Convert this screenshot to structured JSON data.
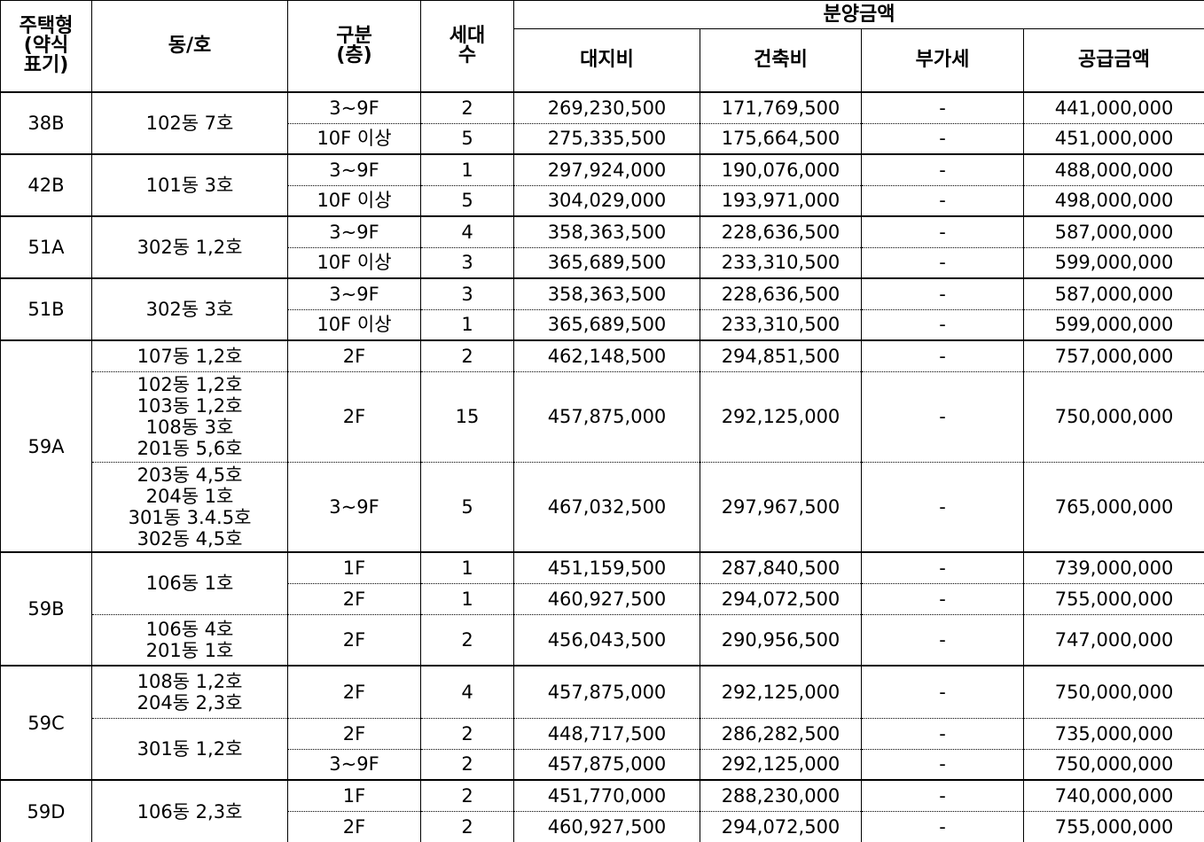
{
  "headers": {
    "type": [
      "주택형",
      "(약식",
      "표기)"
    ],
    "dong_ho": "동/호",
    "floor": [
      "구분",
      "(층)"
    ],
    "households": [
      "세대",
      "수"
    ],
    "price_group": "분양금액",
    "land": "대지비",
    "building": "건축비",
    "vat": "부가세",
    "total": "공급금액"
  },
  "rows": [
    {
      "type": "38B",
      "dong": [
        "102동  7호"
      ],
      "floor": "3~9F",
      "hh": "2",
      "land": "269,230,500",
      "building": "171,769,500",
      "vat": "-",
      "total": "441,000,000"
    },
    {
      "type": "",
      "dong": [],
      "floor": "10F  이상",
      "hh": "5",
      "land": "275,335,500",
      "building": "175,664,500",
      "vat": "-",
      "total": "451,000,000"
    },
    {
      "type": "42B",
      "dong": [
        "101동  3호"
      ],
      "floor": "3~9F",
      "hh": "1",
      "land": "297,924,000",
      "building": "190,076,000",
      "vat": "-",
      "total": "488,000,000"
    },
    {
      "type": "",
      "dong": [],
      "floor": "10F  이상",
      "hh": "5",
      "land": "304,029,000",
      "building": "193,971,000",
      "vat": "-",
      "total": "498,000,000"
    },
    {
      "type": "51A",
      "dong": [
        "302동  1,2호"
      ],
      "floor": "3~9F",
      "hh": "4",
      "land": "358,363,500",
      "building": "228,636,500",
      "vat": "-",
      "total": "587,000,000"
    },
    {
      "type": "",
      "dong": [],
      "floor": "10F  이상",
      "hh": "3",
      "land": "365,689,500",
      "building": "233,310,500",
      "vat": "-",
      "total": "599,000,000"
    },
    {
      "type": "51B",
      "dong": [
        "302동  3호"
      ],
      "floor": "3~9F",
      "hh": "3",
      "land": "358,363,500",
      "building": "228,636,500",
      "vat": "-",
      "total": "587,000,000"
    },
    {
      "type": "",
      "dong": [],
      "floor": "10F  이상",
      "hh": "1",
      "land": "365,689,500",
      "building": "233,310,500",
      "vat": "-",
      "total": "599,000,000"
    },
    {
      "type": "59A",
      "dong": [
        "107동  1,2호"
      ],
      "floor": "2F",
      "hh": "2",
      "land": "462,148,500",
      "building": "294,851,500",
      "vat": "-",
      "total": "757,000,000"
    },
    {
      "type": "",
      "dong": [
        "102동  1,2호",
        "103동  1,2호",
        "108동  3호",
        "201동  5,6호"
      ],
      "floor": "2F",
      "hh": "15",
      "land": "457,875,000",
      "building": "292,125,000",
      "vat": "-",
      "total": "750,000,000"
    },
    {
      "type": "",
      "dong": [
        "203동  4,5호",
        "204동  1호",
        "301동  3.4.5호",
        "302동  4,5호"
      ],
      "floor": "3~9F",
      "hh": "5",
      "land": "467,032,500",
      "building": "297,967,500",
      "vat": "-",
      "total": "765,000,000"
    },
    {
      "type": "59B",
      "dong": [
        "106동  1호"
      ],
      "floor": "1F",
      "hh": "1",
      "land": "451,159,500",
      "building": "287,840,500",
      "vat": "-",
      "total": "739,000,000"
    },
    {
      "type": "",
      "dong": [],
      "floor": "2F",
      "hh": "1",
      "land": "460,927,500",
      "building": "294,072,500",
      "vat": "-",
      "total": "755,000,000"
    },
    {
      "type": "",
      "dong": [
        "106동  4호",
        "201동  1호"
      ],
      "floor": "2F",
      "hh": "2",
      "land": "456,043,500",
      "building": "290,956,500",
      "vat": "-",
      "total": "747,000,000"
    },
    {
      "type": "59C",
      "dong": [
        "108동  1,2호",
        "204동  2,3호"
      ],
      "floor": "2F",
      "hh": "4",
      "land": "457,875,000",
      "building": "292,125,000",
      "vat": "-",
      "total": "750,000,000"
    },
    {
      "type": "",
      "dong": [
        "301동  1,2호"
      ],
      "floor": "2F",
      "hh": "2",
      "land": "448,717,500",
      "building": "286,282,500",
      "vat": "-",
      "total": "735,000,000"
    },
    {
      "type": "",
      "dong": [],
      "floor": "3~9F",
      "hh": "2",
      "land": "457,875,000",
      "building": "292,125,000",
      "vat": "-",
      "total": "750,000,000"
    },
    {
      "type": "59D",
      "dong": [
        "106동  2,3호"
      ],
      "floor": "1F",
      "hh": "2",
      "land": "451,770,000",
      "building": "288,230,000",
      "vat": "-",
      "total": "740,000,000"
    },
    {
      "type": "",
      "dong": [],
      "floor": "2F",
      "hh": "2",
      "land": "460,927,500",
      "building": "294,072,500",
      "vat": "-",
      "total": "755,000,000"
    }
  ]
}
